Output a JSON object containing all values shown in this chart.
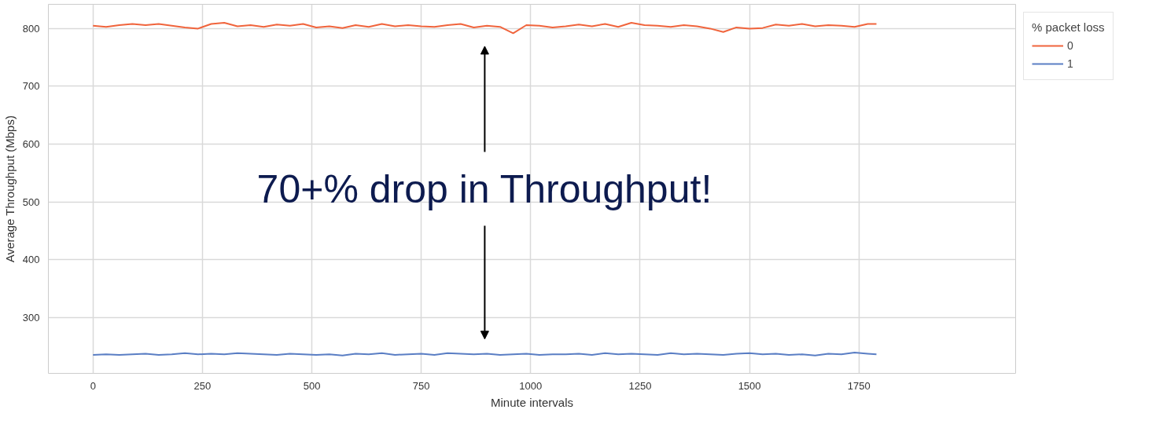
{
  "chart_data": {
    "type": "line",
    "xlabel": "Minute intervals",
    "ylabel": "Average Throughput (Mbps)",
    "legend_title": "% packet loss",
    "legend": "top right",
    "grid": true,
    "xlim": [
      -102,
      2108
    ],
    "ylim": [
      203,
      842
    ],
    "xticks": [
      0,
      250,
      500,
      750,
      1000,
      1250,
      1500,
      1750
    ],
    "yticks": [
      300,
      400,
      500,
      600,
      700,
      800
    ],
    "x": [
      0,
      30,
      60,
      90,
      120,
      150,
      180,
      210,
      240,
      270,
      300,
      330,
      360,
      390,
      420,
      450,
      480,
      510,
      540,
      570,
      600,
      630,
      660,
      690,
      720,
      750,
      780,
      810,
      840,
      870,
      900,
      930,
      960,
      990,
      1020,
      1050,
      1080,
      1110,
      1140,
      1170,
      1200,
      1230,
      1260,
      1290,
      1320,
      1350,
      1380,
      1410,
      1440,
      1470,
      1500,
      1530,
      1560,
      1590,
      1620,
      1650,
      1680,
      1710,
      1740,
      1770,
      1790
    ],
    "series": [
      {
        "name": "0",
        "color": "#f0643c",
        "values": [
          805,
          803,
          806,
          808,
          806,
          808,
          805,
          802,
          800,
          808,
          810,
          804,
          806,
          803,
          807,
          805,
          808,
          802,
          804,
          801,
          806,
          803,
          808,
          804,
          806,
          804,
          803,
          806,
          808,
          802,
          805,
          803,
          792,
          806,
          805,
          802,
          804,
          807,
          804,
          808,
          803,
          810,
          806,
          805,
          803,
          806,
          804,
          800,
          794,
          802,
          800,
          801,
          807,
          805,
          808,
          804,
          806,
          805,
          803,
          808,
          808
        ]
      },
      {
        "name": "1",
        "color": "#5a7ec4",
        "values": [
          235,
          236,
          235,
          236,
          237,
          235,
          236,
          238,
          236,
          237,
          236,
          238,
          237,
          236,
          235,
          237,
          236,
          235,
          236,
          234,
          237,
          236,
          238,
          235,
          236,
          237,
          235,
          238,
          237,
          236,
          237,
          235,
          236,
          237,
          235,
          236,
          236,
          237,
          235,
          238,
          236,
          237,
          236,
          235,
          238,
          236,
          237,
          236,
          235,
          237,
          238,
          236,
          237,
          235,
          236,
          234,
          237,
          236,
          239,
          237,
          236
        ]
      }
    ],
    "annotations": [
      "70+% drop in Throughput!"
    ]
  }
}
